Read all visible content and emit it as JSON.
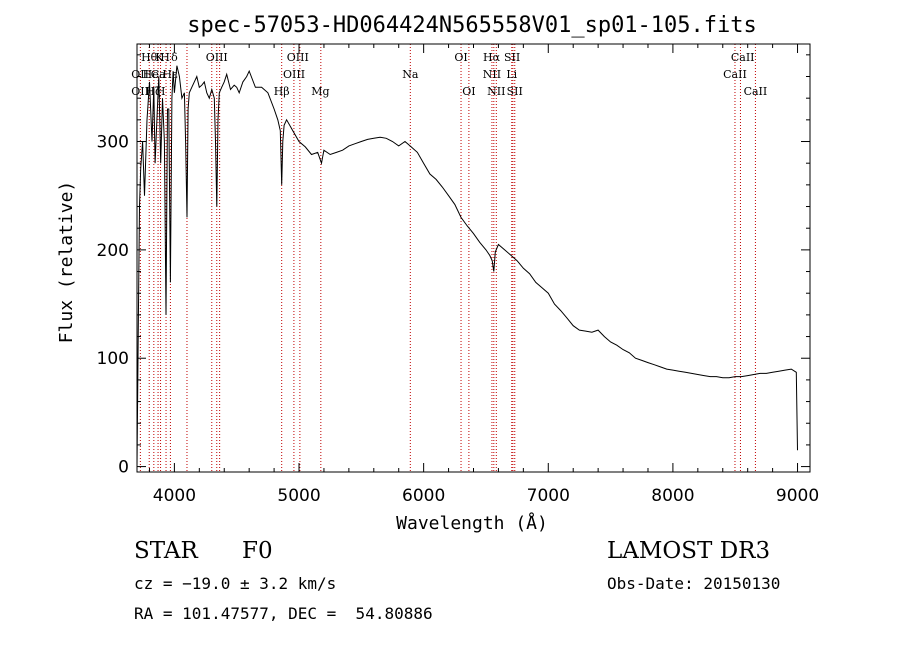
{
  "chart_data": {
    "type": "line",
    "title": "spec-57053-HD064424N565558V01_sp01-105.fits",
    "xlabel": "Wavelength (Å)",
    "ylabel": "Flux (relative)",
    "xlim": [
      3700,
      9100
    ],
    "ylim": [
      -5,
      390
    ],
    "xticks": [
      4000,
      5000,
      6000,
      7000,
      8000,
      9000
    ],
    "yticks": [
      0,
      100,
      200,
      300
    ],
    "series": [
      {
        "name": "spectrum",
        "x": [
          3700,
          3710,
          3720,
          3730,
          3745,
          3760,
          3780,
          3800,
          3820,
          3835,
          3845,
          3860,
          3875,
          3890,
          3905,
          3920,
          3933,
          3945,
          3955,
          3968,
          3980,
          3990,
          4000,
          4020,
          4040,
          4060,
          4080,
          4090,
          4101,
          4110,
          4120,
          4140,
          4160,
          4180,
          4200,
          4220,
          4240,
          4260,
          4280,
          4300,
          4320,
          4330,
          4340,
          4350,
          4360,
          4380,
          4400,
          4420,
          4450,
          4480,
          4500,
          4520,
          4550,
          4580,
          4600,
          4650,
          4700,
          4750,
          4800,
          4830,
          4850,
          4861,
          4870,
          4880,
          4900,
          4950,
          5000,
          5050,
          5100,
          5150,
          5180,
          5200,
          5250,
          5300,
          5350,
          5400,
          5450,
          5500,
          5550,
          5600,
          5650,
          5700,
          5750,
          5800,
          5850,
          5900,
          5950,
          6000,
          6050,
          6100,
          6150,
          6200,
          6250,
          6300,
          6350,
          6400,
          6450,
          6500,
          6530,
          6550,
          6563,
          6575,
          6600,
          6650,
          6700,
          6750,
          6800,
          6850,
          6900,
          6950,
          7000,
          7050,
          7100,
          7150,
          7200,
          7250,
          7300,
          7350,
          7400,
          7450,
          7500,
          7550,
          7600,
          7650,
          7700,
          7750,
          7800,
          7850,
          7900,
          7950,
          8000,
          8050,
          8100,
          8150,
          8200,
          8250,
          8300,
          8350,
          8400,
          8450,
          8500,
          8550,
          8600,
          8650,
          8700,
          8750,
          8800,
          8850,
          8900,
          8950,
          8990,
          9000
        ],
        "values": [
          0,
          120,
          240,
          275,
          300,
          250,
          320,
          355,
          300,
          350,
          280,
          320,
          360,
          280,
          340,
          300,
          140,
          330,
          330,
          170,
          340,
          365,
          345,
          370,
          360,
          340,
          345,
          300,
          230,
          330,
          345,
          350,
          355,
          360,
          350,
          352,
          355,
          345,
          340,
          348,
          340,
          300,
          240,
          320,
          345,
          350,
          355,
          362,
          348,
          352,
          350,
          345,
          355,
          360,
          365,
          350,
          350,
          345,
          330,
          320,
          310,
          260,
          300,
          315,
          320,
          310,
          300,
          295,
          288,
          290,
          280,
          292,
          288,
          290,
          292,
          296,
          298,
          300,
          302,
          303,
          304,
          303,
          300,
          296,
          300,
          295,
          290,
          280,
          270,
          265,
          258,
          250,
          242,
          230,
          222,
          215,
          207,
          200,
          195,
          190,
          180,
          198,
          205,
          200,
          195,
          190,
          183,
          178,
          170,
          165,
          160,
          150,
          144,
          137,
          130,
          126,
          125,
          124,
          126,
          120,
          115,
          112,
          108,
          105,
          100,
          98,
          96,
          94,
          92,
          90,
          89,
          88,
          87,
          86,
          85,
          84,
          83,
          83,
          82,
          82,
          83,
          83,
          84,
          85,
          86,
          86,
          87,
          88,
          89,
          90,
          87,
          15
        ]
      }
    ],
    "line_labels": [
      {
        "text": "Hθ",
        "x": 3798,
        "row": 1
      },
      {
        "text": "K",
        "x": 3880,
        "row": 1
      },
      {
        "text": "H",
        "x": 3925,
        "row": 1
      },
      {
        "text": "δ",
        "x": 4000,
        "row": 1
      },
      {
        "text": "OIII",
        "x": 4340,
        "row": 1
      },
      {
        "text": "OIII",
        "x": 4990,
        "row": 1
      },
      {
        "text": "OI",
        "x": 6300,
        "row": 1
      },
      {
        "text": "Hα",
        "x": 6545,
        "row": 1
      },
      {
        "text": "SII",
        "x": 6710,
        "row": 1
      },
      {
        "text": "CaII",
        "x": 8560,
        "row": 1
      },
      {
        "text": "OII",
        "x": 3725,
        "row": 2
      },
      {
        "text": "He",
        "x": 3810,
        "row": 2
      },
      {
        "text": "Ca",
        "x": 3870,
        "row": 2
      },
      {
        "text": "Hε",
        "x": 3965,
        "row": 2
      },
      {
        "text": "OIII",
        "x": 4960,
        "row": 2
      },
      {
        "text": "Na",
        "x": 5893,
        "row": 2
      },
      {
        "text": "NII",
        "x": 6548,
        "row": 2
      },
      {
        "text": "Li",
        "x": 6707,
        "row": 2
      },
      {
        "text": "CaII",
        "x": 8498,
        "row": 2
      },
      {
        "text": "OII",
        "x": 3725,
        "row": 3
      },
      {
        "text": "Hζ",
        "x": 3830,
        "row": 3
      },
      {
        "text": "H",
        "x": 3890,
        "row": 3
      },
      {
        "text": "Hβ",
        "x": 4861,
        "row": 3
      },
      {
        "text": "Mg",
        "x": 5172,
        "row": 3
      },
      {
        "text": "OI",
        "x": 6363,
        "row": 3
      },
      {
        "text": "NII",
        "x": 6583,
        "row": 3
      },
      {
        "text": "SII",
        "x": 6731,
        "row": 3
      },
      {
        "text": "CaII",
        "x": 8662,
        "row": 3
      }
    ],
    "marker_lines": [
      3727,
      3798,
      3835,
      3869,
      3889,
      3933,
      3968,
      4101,
      4300,
      4340,
      4363,
      4861,
      4959,
      5007,
      5175,
      5893,
      6300,
      6363,
      6548,
      6563,
      6583,
      6707,
      6716,
      6731,
      8498,
      8542,
      8662
    ]
  },
  "info": {
    "object_type": "STAR",
    "subclass": "F0",
    "survey": "LAMOST DR3",
    "cz": "cz = −19.0 ± 3.2 km/s",
    "obs_date": "Obs-Date: 20150130",
    "coords": "RA = 101.47577, DEC =  54.80886"
  },
  "colors": {
    "marker": "#c00000",
    "spectrum": "#000000",
    "axes": "#000000"
  }
}
